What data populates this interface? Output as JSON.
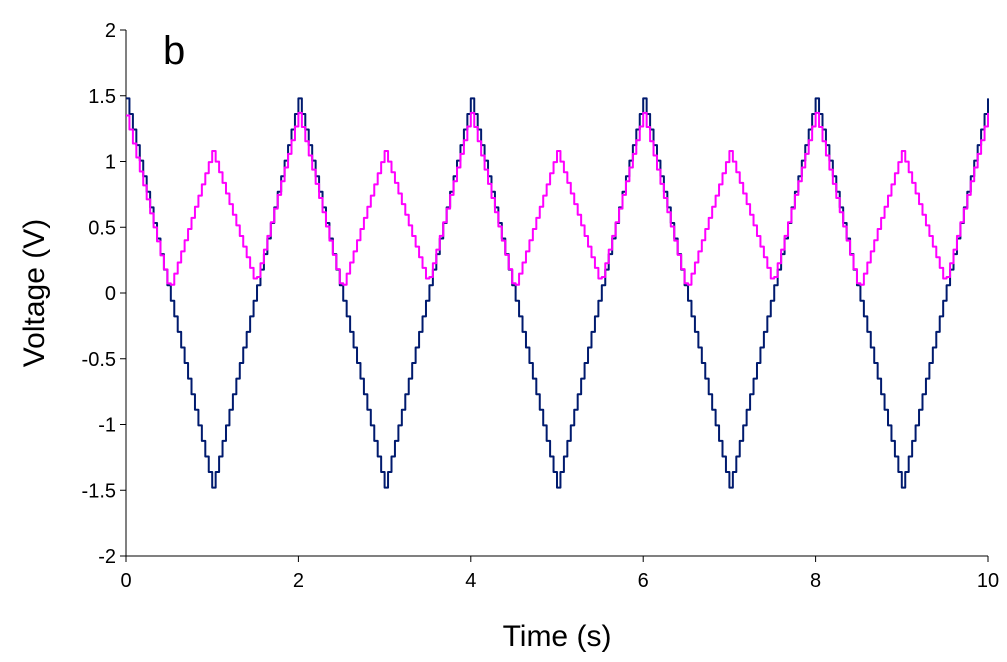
{
  "chart_data": {
    "type": "line",
    "panel_label": "b",
    "title": "",
    "xlabel": "Time (s)",
    "ylabel": "Voltage (V)",
    "xlim": [
      0,
      10
    ],
    "ylim": [
      -2,
      2
    ],
    "x_ticks": [
      0,
      2,
      4,
      6,
      8,
      10
    ],
    "y_ticks": [
      -2,
      -1.5,
      -1,
      -0.5,
      0,
      0.5,
      1,
      1.5,
      2
    ],
    "x_tick_labels": [
      "0",
      "2",
      "4",
      "6",
      "8",
      "10"
    ],
    "y_tick_labels": [
      "-2",
      "-1.5",
      "-1",
      "-0.5",
      "0",
      "0.5",
      "1",
      "1.5",
      "2"
    ],
    "grid": false,
    "legend": "none",
    "series": [
      {
        "color": "#001a6e",
        "x": [
          0,
          1,
          2,
          3,
          4,
          5,
          6,
          7,
          8,
          9,
          10
        ],
        "y": [
          1.48,
          -1.48,
          1.48,
          -1.48,
          1.48,
          -1.48,
          1.48,
          -1.48,
          1.48,
          -1.48,
          1.48
        ]
      },
      {
        "color": "#ff00ff",
        "x": [
          0,
          0.5,
          1,
          1.5,
          2,
          2.5,
          3,
          3.5,
          4,
          4.5,
          5,
          5.5,
          6,
          6.5,
          7,
          7.5,
          8,
          8.5,
          9,
          9.5,
          10
        ],
        "y": [
          1.35,
          0.02,
          1.08,
          0.07,
          1.37,
          0.02,
          1.08,
          0.07,
          1.37,
          0.02,
          1.08,
          0.07,
          1.37,
          0.02,
          1.08,
          0.07,
          1.37,
          0.02,
          1.08,
          0.07,
          1.37
        ]
      }
    ]
  }
}
